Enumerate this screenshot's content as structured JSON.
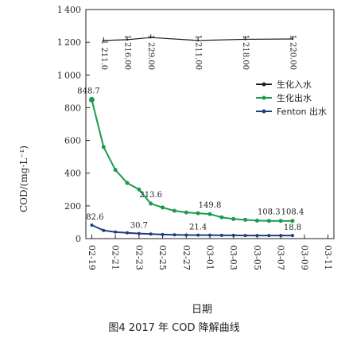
{
  "caption": "图4  2017 年 COD 降解曲线",
  "chart_data": {
    "type": "line",
    "ylabel": "COD/(mg·L⁻¹)",
    "xlabel": "日期",
    "ylim": [
      0,
      1400
    ],
    "yticks": [
      0,
      200,
      400,
      600,
      800,
      1000,
      1200,
      1400
    ],
    "categories": [
      "02-19",
      "02-21",
      "02-23",
      "02-25",
      "02-27",
      "03-01",
      "03-03",
      "03-05",
      "03-07",
      "03-09",
      "03-11"
    ],
    "series": [
      {
        "name": "生化入水",
        "color": "#1f1f1f",
        "marker": "none",
        "points": [
          {
            "x": "02-20",
            "y": 1211.0,
            "label": "1 211.0"
          },
          {
            "x": "02-22",
            "y": 1216.0,
            "label": "1 216.00"
          },
          {
            "x": "02-24",
            "y": 1229.0,
            "label": "1 229.00"
          },
          {
            "x": "02-28",
            "y": 1211.0,
            "label": "1 211.00"
          },
          {
            "x": "03-04",
            "y": 1218.0,
            "label": "1 218.00"
          },
          {
            "x": "03-08",
            "y": 1220.0,
            "label": "1 220.00"
          }
        ]
      },
      {
        "name": "生化出水",
        "color": "#1a9a4a",
        "marker": "circle",
        "points": [
          {
            "x": "02-19",
            "y": 848.7,
            "label": "848.7"
          },
          {
            "x": "02-20",
            "y": 560
          },
          {
            "x": "02-21",
            "y": 420
          },
          {
            "x": "02-22",
            "y": 340
          },
          {
            "x": "02-23",
            "y": 300
          },
          {
            "x": "02-24",
            "y": 213.6,
            "label": "213.6"
          },
          {
            "x": "02-25",
            "y": 190
          },
          {
            "x": "02-26",
            "y": 170
          },
          {
            "x": "02-27",
            "y": 160
          },
          {
            "x": "02-28",
            "y": 155
          },
          {
            "x": "03-01",
            "y": 149.8,
            "label": "149.8"
          },
          {
            "x": "03-02",
            "y": 130
          },
          {
            "x": "03-03",
            "y": 120
          },
          {
            "x": "03-04",
            "y": 115
          },
          {
            "x": "03-05",
            "y": 110
          },
          {
            "x": "03-06",
            "y": 108.3,
            "label": "108.3"
          },
          {
            "x": "03-07",
            "y": 108
          },
          {
            "x": "03-08",
            "y": 108.4,
            "label": "108.4"
          }
        ]
      },
      {
        "name": "Fenton 出水",
        "color": "#1f3c80",
        "marker": "dot",
        "points": [
          {
            "x": "02-19",
            "y": 82.6,
            "label": "82.6"
          },
          {
            "x": "02-20",
            "y": 50
          },
          {
            "x": "02-21",
            "y": 40
          },
          {
            "x": "02-22",
            "y": 35
          },
          {
            "x": "02-23",
            "y": 30.7,
            "label": "30.7"
          },
          {
            "x": "02-24",
            "y": 28
          },
          {
            "x": "02-25",
            "y": 25
          },
          {
            "x": "02-26",
            "y": 23
          },
          {
            "x": "02-27",
            "y": 22
          },
          {
            "x": "02-28",
            "y": 21.4,
            "label": "21.4"
          },
          {
            "x": "03-01",
            "y": 21
          },
          {
            "x": "03-02",
            "y": 20
          },
          {
            "x": "03-03",
            "y": 20
          },
          {
            "x": "03-04",
            "y": 19
          },
          {
            "x": "03-05",
            "y": 19
          },
          {
            "x": "03-06",
            "y": 19
          },
          {
            "x": "03-07",
            "y": 18.8
          },
          {
            "x": "03-08",
            "y": 18.8,
            "label": "18.8"
          }
        ]
      }
    ]
  }
}
